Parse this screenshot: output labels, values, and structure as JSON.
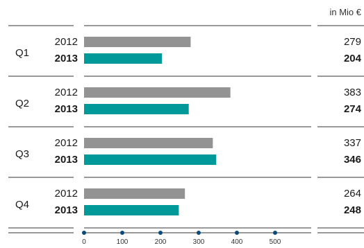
{
  "chart_data": {
    "type": "bar",
    "orientation": "horizontal",
    "unit_label": "in Mio €",
    "categories": [
      "Q1",
      "Q2",
      "Q3",
      "Q4"
    ],
    "series": [
      {
        "name": "2012",
        "values": [
          279,
          383,
          337,
          264
        ],
        "color": "#939393"
      },
      {
        "name": "2013",
        "values": [
          204,
          274,
          346,
          248
        ],
        "color": "#009999"
      }
    ],
    "xticks": [
      0,
      100,
      200,
      300,
      400,
      500
    ],
    "xlim": [
      0,
      550
    ],
    "grid": false
  }
}
